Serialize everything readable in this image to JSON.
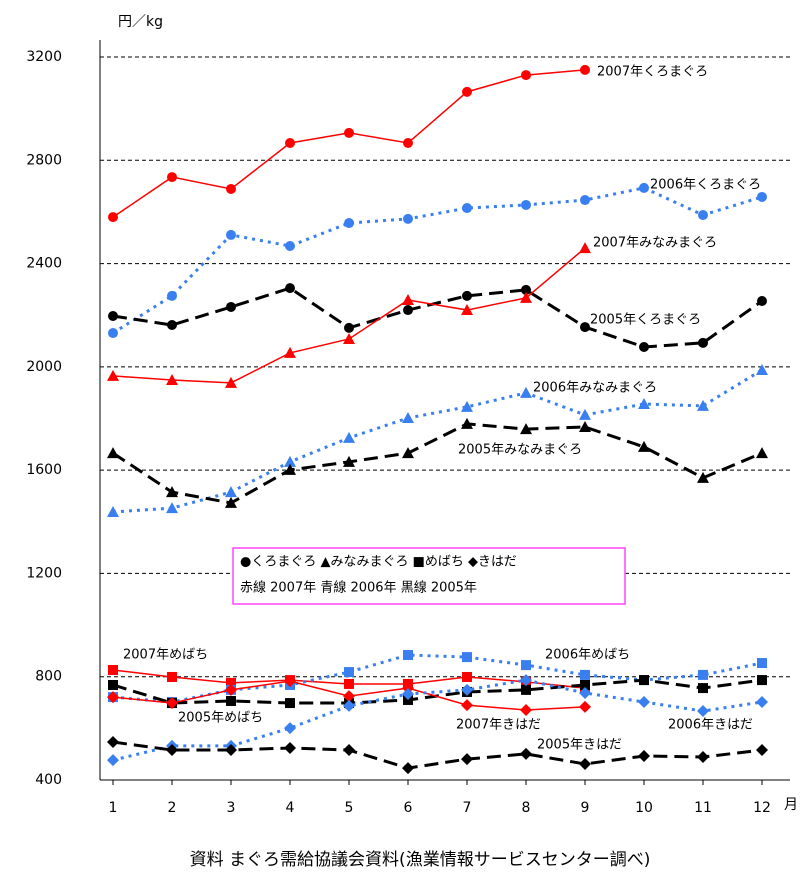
{
  "chart_data": {
    "type": "line",
    "y_label": "円／kg",
    "x_label": "月",
    "source": "資料 まぐろ需給協議会資料(漁業情報サービスセンター調べ)",
    "legend_lines": [
      "●くろまぐろ ▲みなみまぐろ ■めばち ◆きはだ",
      "赤線 2007年 青線 2006年 黒線 2005年"
    ],
    "categories": [
      "1",
      "2",
      "3",
      "4",
      "5",
      "6",
      "7",
      "8",
      "9",
      "10",
      "11",
      "12"
    ],
    "ylim": [
      400,
      3200
    ],
    "yticks": [
      400,
      800,
      1200,
      1600,
      2000,
      2400,
      2800,
      3200
    ],
    "grid": true,
    "series": [
      {
        "name": "2007年くろまぐろ",
        "color": "#ff0000",
        "marker": "circle",
        "line_style": "solid",
        "values": [
          2580,
          2735,
          2689,
          2867,
          2906,
          2867,
          3065,
          3130,
          3150,
          null,
          null,
          null
        ]
      },
      {
        "name": "2006年くろまぐろ",
        "color": "#3a7ff0",
        "marker": "circle",
        "line_style": "dotted",
        "values": [
          2131,
          2275,
          2511,
          2468,
          2557,
          2573,
          2615,
          2627,
          2646,
          2693,
          2588,
          2658
        ]
      },
      {
        "name": "2005年くろまぐろ",
        "color": "#000000",
        "marker": "circle",
        "line_style": "dashed",
        "values": [
          2197,
          2162,
          2232,
          2305,
          2151,
          2220,
          2275,
          2298,
          2154,
          2077,
          2093,
          2255
        ]
      },
      {
        "name": "2007年みなみまぐろ",
        "color": "#ff0000",
        "marker": "triangle",
        "line_style": "solid",
        "values": [
          1965,
          1949,
          1938,
          2054,
          2108,
          2259,
          2220,
          2267,
          2460,
          null,
          null,
          null
        ]
      },
      {
        "name": "2006年みなみまぐろ",
        "color": "#3a7ff0",
        "marker": "triangle",
        "line_style": "dotted",
        "values": [
          1438,
          1453,
          1515,
          1632,
          1725,
          1802,
          1845,
          1899,
          1814,
          1856,
          1849,
          1988
        ]
      },
      {
        "name": "2005年みなみまぐろ",
        "color": "#000000",
        "marker": "triangle",
        "line_style": "dashed",
        "values": [
          1666,
          1515,
          1473,
          1601,
          1632,
          1666,
          1779,
          1759,
          1767,
          1690,
          1570,
          1666
        ]
      },
      {
        "name": "2007年めばち",
        "color": "#ff0000",
        "marker": "square",
        "line_style": "solid",
        "values": [
          826,
          799,
          776,
          787,
          772,
          772,
          799,
          780,
          756,
          null,
          null,
          null
        ]
      },
      {
        "name": "2006年めばち",
        "color": "#3a7ff0",
        "marker": "square",
        "line_style": "dotted",
        "values": [
          721,
          702,
          749,
          768,
          818,
          884,
          876,
          845,
          807,
          787,
          807,
          853
        ]
      },
      {
        "name": "2005年めばち",
        "color": "#000000",
        "marker": "square",
        "line_style": "dashed",
        "values": [
          768,
          698,
          706,
          698,
          698,
          710,
          741,
          749,
          768,
          787,
          756,
          787
        ]
      },
      {
        "name": "2007年きはだ",
        "color": "#ff0000",
        "marker": "diamond",
        "line_style": "solid",
        "values": [
          721,
          698,
          749,
          783,
          725,
          756,
          690,
          671,
          683,
          null,
          null,
          null
        ]
      },
      {
        "name": "2006年きはだ",
        "color": "#3a7ff0",
        "marker": "diamond",
        "line_style": "dotted",
        "values": [
          477,
          532,
          532,
          601,
          687,
          733,
          749,
          787,
          737,
          702,
          667,
          702
        ]
      },
      {
        "name": "2005年きはだ",
        "color": "#000000",
        "marker": "diamond",
        "line_style": "dashed",
        "values": [
          547,
          516,
          516,
          524,
          516,
          446,
          481,
          501,
          462,
          493,
          489,
          516
        ]
      }
    ]
  }
}
